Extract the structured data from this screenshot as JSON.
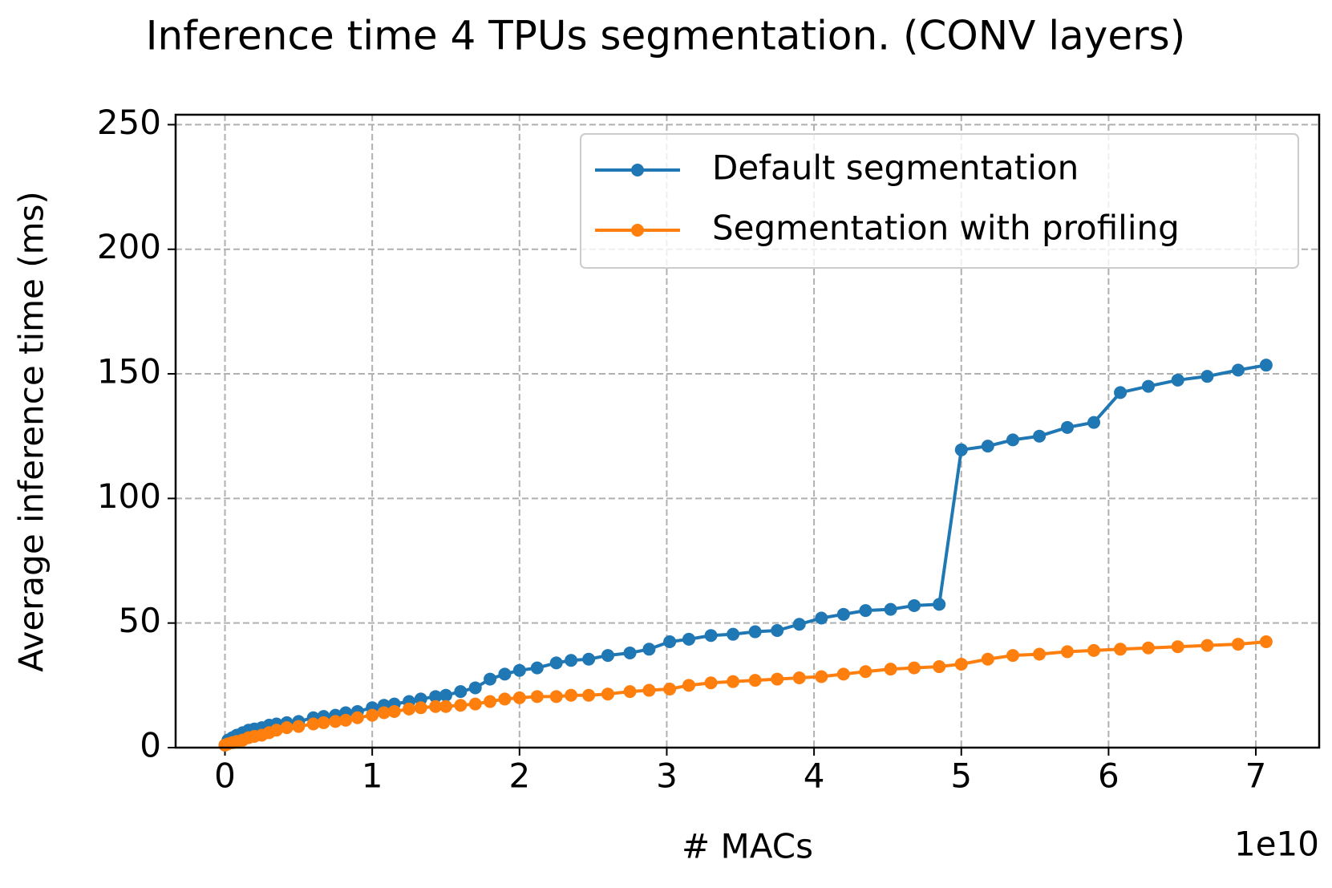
{
  "chart_data": {
    "type": "line",
    "title": "Inference time 4 TPUs segmentation. (CONV layers)",
    "x_label": "# MACs",
    "y_label": "Average inference time (ms)",
    "x_offset_label": "1e10",
    "x": [
      0.0,
      0.02,
      0.05,
      0.08,
      0.12,
      0.16,
      0.2,
      0.25,
      0.3,
      0.35,
      0.42,
      0.5,
      0.6,
      0.67,
      0.75,
      0.82,
      0.9,
      1.0,
      1.08,
      1.15,
      1.25,
      1.33,
      1.43,
      1.5,
      1.6,
      1.7,
      1.8,
      1.9,
      2.0,
      2.12,
      2.25,
      2.35,
      2.47,
      2.6,
      2.75,
      2.88,
      3.02,
      3.15,
      3.3,
      3.45,
      3.6,
      3.75,
      3.9,
      4.05,
      4.2,
      4.35,
      4.52,
      4.68,
      4.85,
      5.0,
      5.18,
      5.35,
      5.53,
      5.72,
      5.9,
      6.08,
      6.27,
      6.47,
      6.67,
      6.88,
      7.07
    ],
    "series": [
      {
        "name": "Default segmentation",
        "color": "#1f77b4",
        "values": [
          1,
          3,
          4,
          5,
          6,
          7,
          7.5,
          8,
          9,
          9.5,
          10,
          10.5,
          12,
          12.5,
          13,
          14,
          14.5,
          16,
          17,
          17.5,
          18.5,
          19.5,
          20.5,
          21,
          22.5,
          24,
          27.5,
          29.5,
          31,
          32,
          34,
          35,
          35.5,
          37,
          38,
          39.5,
          42.5,
          43.5,
          45,
          45.5,
          46.5,
          47,
          49.5,
          52,
          53.5,
          55,
          55.5,
          57,
          57.5,
          119.5,
          121,
          123.5,
          125,
          128.5,
          130.5,
          142.5,
          145,
          147.5,
          149,
          151.5,
          153.5
        ]
      },
      {
        "name": "Segmentation with profiling",
        "color": "#ff7f0e",
        "values": [
          1,
          1.5,
          2,
          2.5,
          3,
          4,
          4.5,
          5,
          6,
          7,
          8,
          8.5,
          9.5,
          10,
          10.5,
          11,
          12,
          13,
          14,
          14.5,
          15.5,
          16,
          16.5,
          16.5,
          17,
          17.5,
          18.5,
          19.5,
          20,
          20.5,
          20.5,
          21,
          21,
          21.5,
          22.5,
          23,
          23.5,
          25,
          26,
          26.5,
          27,
          27.5,
          28,
          28.5,
          29.5,
          30.5,
          31.5,
          32,
          32.5,
          33.5,
          35.5,
          37,
          37.5,
          38.5,
          39,
          39.5,
          40,
          40.5,
          41,
          41.5,
          42.5
        ]
      }
    ],
    "xlim": [
      -0.335,
      7.43
    ],
    "ylim": [
      0,
      254
    ],
    "xticks": [
      0,
      1,
      2,
      3,
      4,
      5,
      6,
      7
    ],
    "yticks": [
      0,
      50,
      100,
      150,
      200,
      250
    ],
    "grid": true,
    "legend": "upper right"
  }
}
